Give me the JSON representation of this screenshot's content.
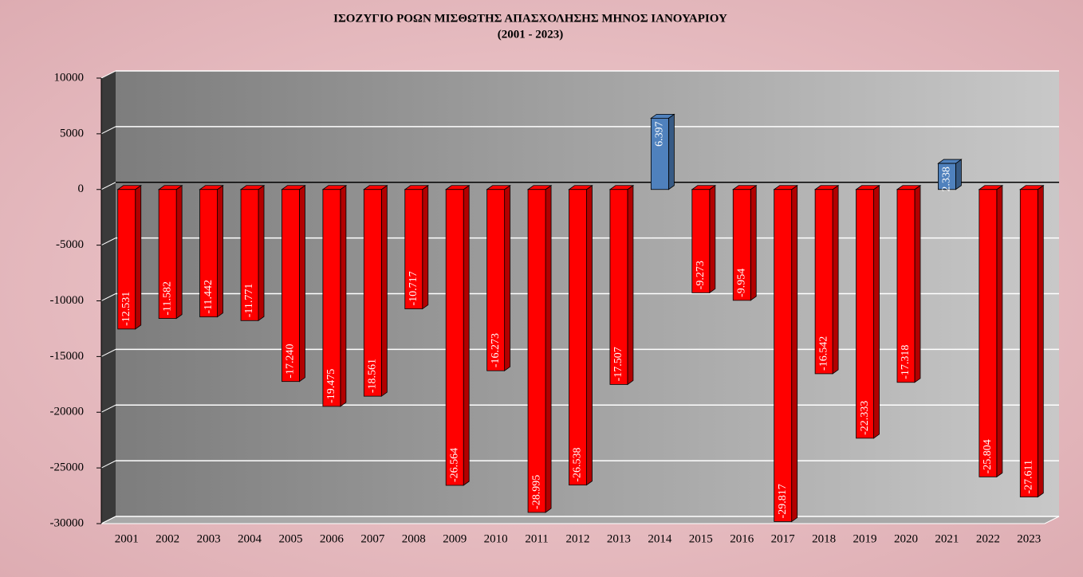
{
  "chart_data": {
    "type": "bar",
    "title": "ΙΣΟΖΥΓΙΟ ΡΟΩΝ ΜΙΣΘΩΤΗΣ ΑΠΑΣΧΟΛΗΣΗΣ ΜΗΝΟΣ  ΙΑΝΟΥΑΡΙΟΥ",
    "subtitle": "(2001 - 2023)",
    "categories": [
      "2001",
      "2002",
      "2003",
      "2004",
      "2005",
      "2006",
      "2007",
      "2008",
      "2009",
      "2010",
      "2011",
      "2012",
      "2013",
      "2014",
      "2015",
      "2016",
      "2017",
      "2018",
      "2019",
      "2020",
      "2021",
      "2022",
      "2023"
    ],
    "values": [
      -12531,
      -11582,
      -11442,
      -11771,
      -17240,
      -19475,
      -18561,
      -10717,
      -26564,
      -16273,
      -28995,
      -26538,
      -17507,
      6397,
      -9273,
      -9954,
      -29817,
      -16542,
      -22333,
      -17318,
      2338,
      -25804,
      -27611
    ],
    "value_labels": [
      "-12.531",
      "-11.582",
      "-11.442",
      "-11.771",
      "-17.240",
      "-19.475",
      "-18.561",
      "-10.717",
      "-26.564",
      "-16.273",
      "-28.995",
      "-26.538",
      "-17.507",
      "6.397",
      "-9.273",
      "-9.954",
      "-29.817",
      "-16.542",
      "-22.333",
      "-17.318",
      "2.338",
      "-25.804",
      "-27.611"
    ],
    "color_negative": "#ff0000",
    "color_positive": "#4f81bd",
    "ylim": [
      -30000,
      10000
    ],
    "yticks": [
      -30000,
      -25000,
      -20000,
      -15000,
      -10000,
      -5000,
      0,
      5000,
      10000
    ],
    "grid": true
  }
}
